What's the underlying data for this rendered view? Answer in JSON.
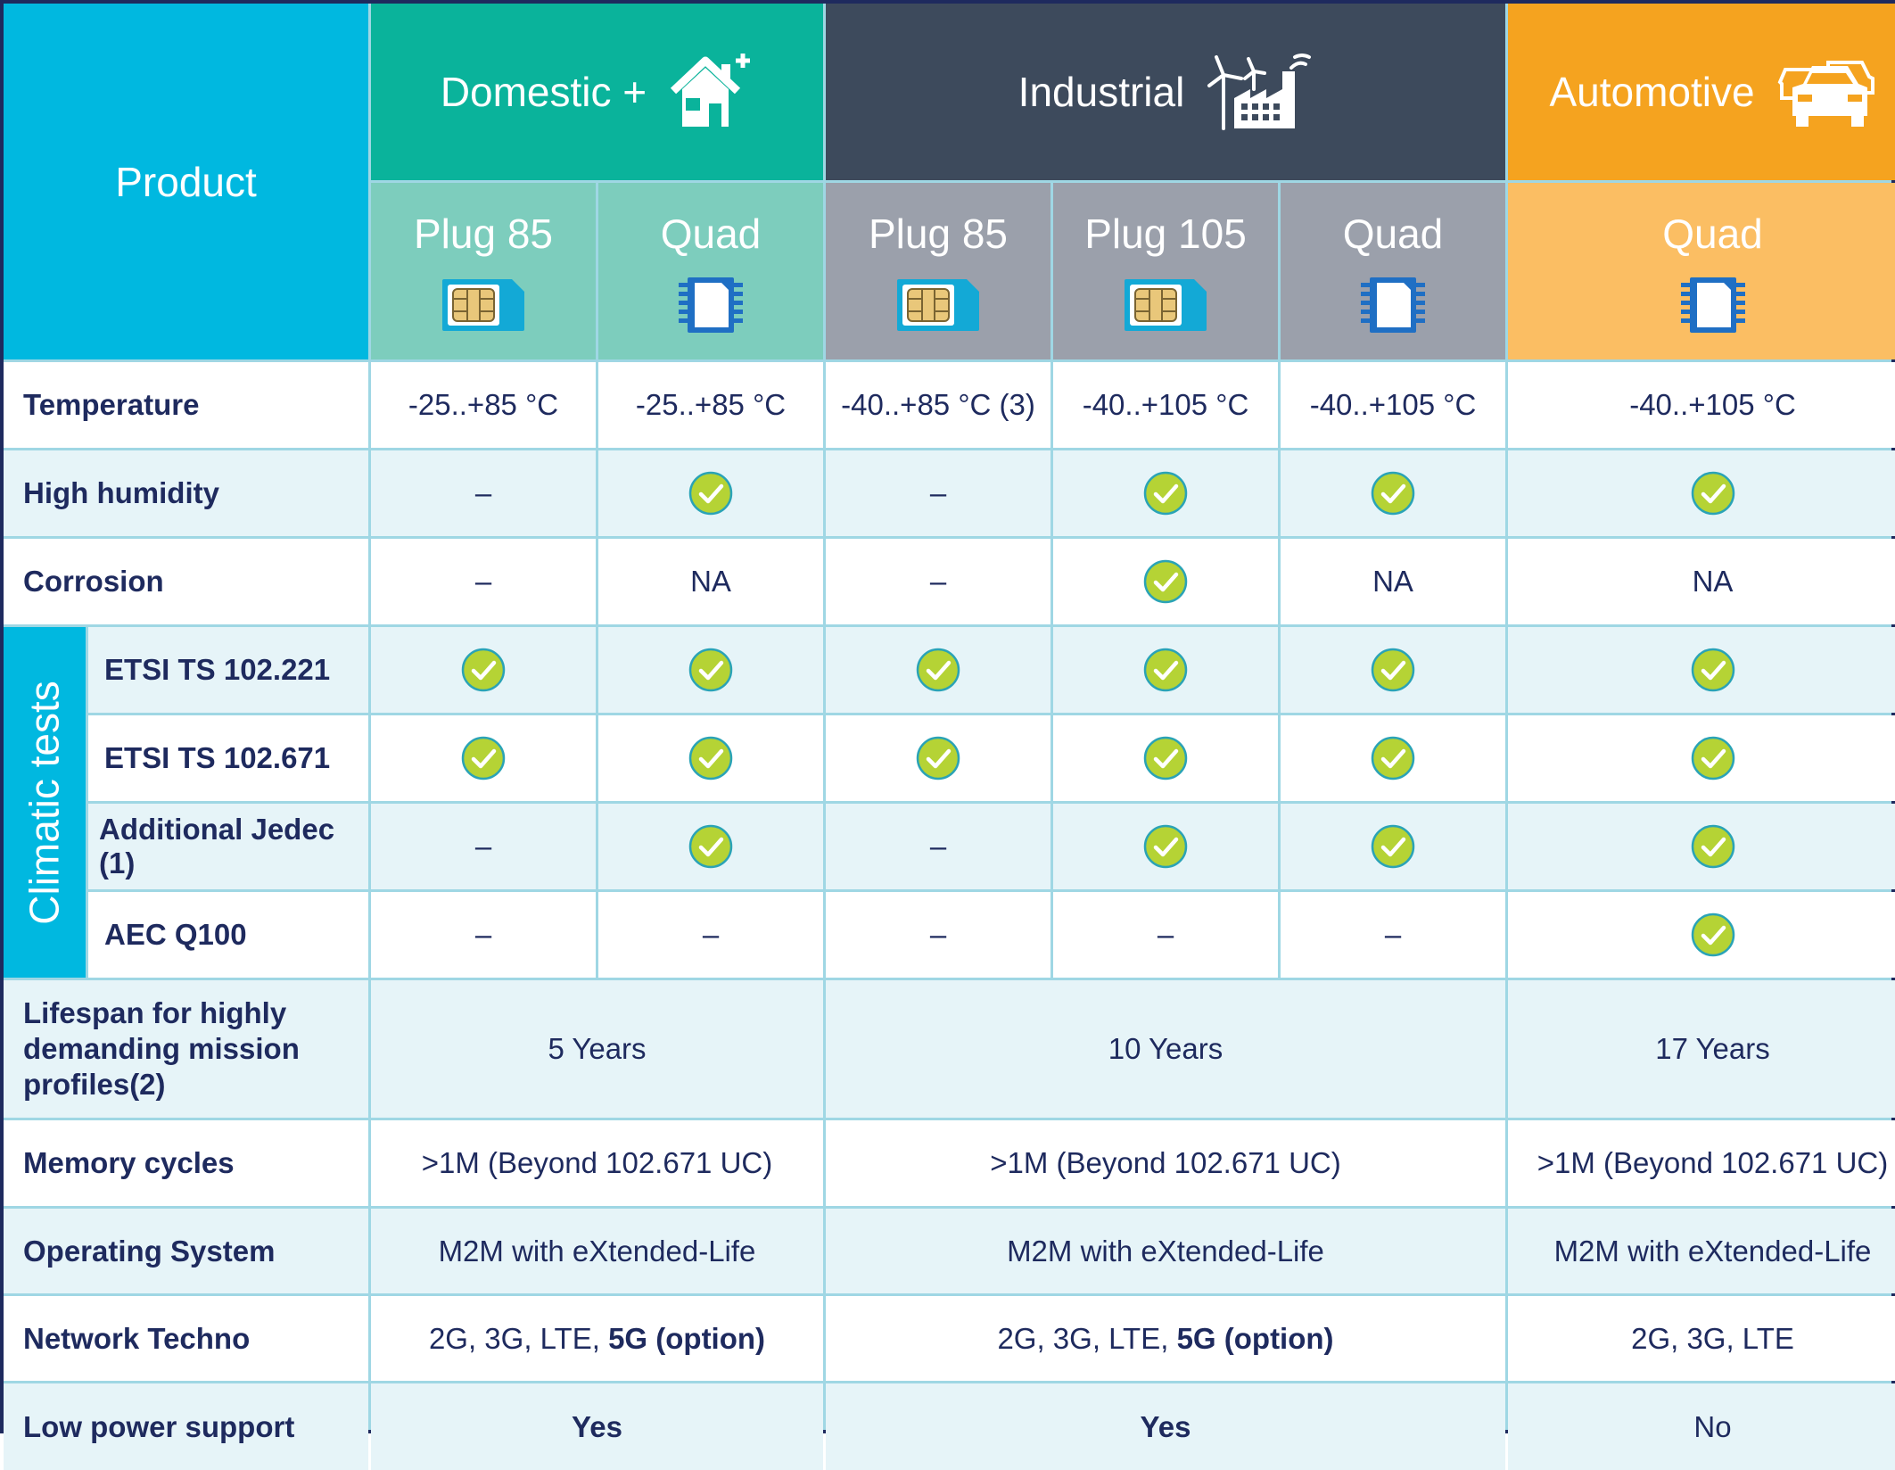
{
  "header": {
    "product": "Product",
    "groups": [
      {
        "label": "Domestic +",
        "icon": "house-plus-icon"
      },
      {
        "label": "Industrial",
        "icon": "factory-wind-icon"
      },
      {
        "label": "Automotive",
        "icon": "cars-icon"
      }
    ],
    "products": [
      {
        "label": "Plug 85",
        "icon": "sim-plug-icon"
      },
      {
        "label": "Quad",
        "icon": "quad-chip-icon"
      },
      {
        "label": "Plug 85",
        "icon": "sim-plug-icon"
      },
      {
        "label": "Plug 105",
        "icon": "sim-plug-icon"
      },
      {
        "label": "Quad",
        "icon": "quad-chip-icon"
      },
      {
        "label": "Quad",
        "icon": "quad-chip-icon"
      }
    ]
  },
  "rows": {
    "temperature": {
      "label": "Temperature",
      "values": [
        "-25..+85 °C",
        "-25..+85 °C",
        "-40..+85 °C (3)",
        "-40..+105 °C",
        "-40..+105 °C",
        "-40..+105 °C"
      ]
    },
    "humidity": {
      "label": "High humidity",
      "values": [
        "–",
        "check",
        "–",
        "check",
        "check",
        "check"
      ]
    },
    "corrosion": {
      "label": "Corrosion",
      "values": [
        "–",
        "NA",
        "–",
        "check",
        "NA",
        "NA"
      ]
    }
  },
  "climatic": {
    "label": "Climatic tests",
    "rows": [
      {
        "label": "ETSI TS 102.221",
        "values": [
          "check",
          "check",
          "check",
          "check",
          "check",
          "check"
        ]
      },
      {
        "label": "ETSI TS 102.671",
        "values": [
          "check",
          "check",
          "check",
          "check",
          "check",
          "check"
        ]
      },
      {
        "label": "Additional Jedec (1)",
        "values": [
          "–",
          "check",
          "–",
          "check",
          "check",
          "check"
        ]
      },
      {
        "label": "AEC Q100",
        "values": [
          "–",
          "–",
          "–",
          "–",
          "–",
          "check"
        ]
      }
    ]
  },
  "group_rows": {
    "lifespan": {
      "label_lines": [
        "Lifespan for highly",
        "demanding mission",
        "profiles(2)"
      ],
      "values": [
        "5 Years",
        "10 Years",
        "17 Years"
      ]
    },
    "memory": {
      "label": "Memory cycles",
      "values": [
        ">1M (Beyond 102.671 UC)",
        ">1M (Beyond 102.671 UC)",
        ">1M (Beyond 102.671 UC)"
      ]
    },
    "os": {
      "label": "Operating System",
      "values": [
        "M2M with eXtended-Life",
        "M2M with eXtended-Life",
        "M2M with eXtended-Life"
      ]
    },
    "network": {
      "label": "Network Techno",
      "domestic": {
        "plain": "2G, 3G, LTE, ",
        "bold": "5G (option)"
      },
      "industrial": {
        "plain": "2G, 3G, LTE, ",
        "bold": "5G (option)"
      },
      "automotive": "2G, 3G, LTE"
    },
    "lowpower": {
      "label": "Low power support",
      "values": [
        "Yes",
        "Yes",
        "No"
      ]
    }
  },
  "colors": {
    "product": "#00b8e0",
    "domestic": "#0ab39b",
    "industrial": "#3d4a5c",
    "automotive": "#f5a31f",
    "check": "#b5d335",
    "text": "#1e2a5e"
  }
}
